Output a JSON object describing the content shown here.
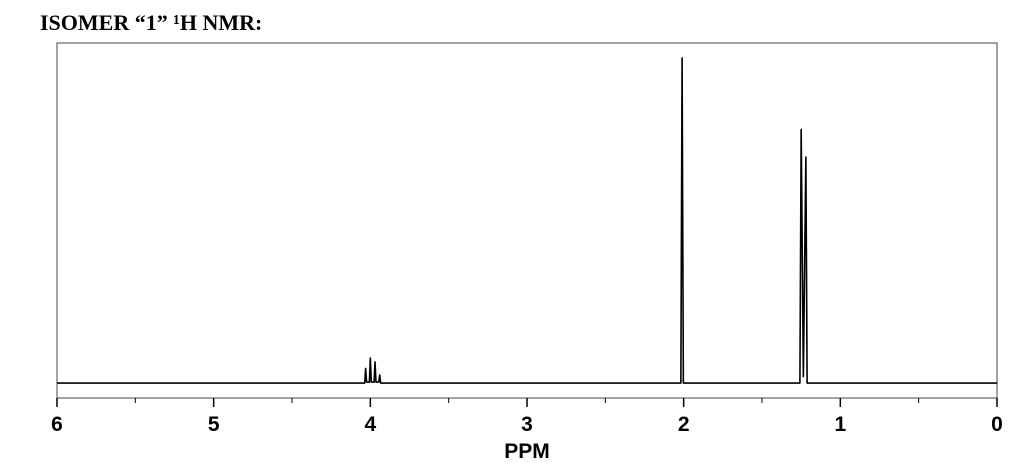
{
  "chart_data": {
    "type": "line",
    "title": "ISOMER “1” ¹H NMR:",
    "x_label": "PPM",
    "x": [
      6,
      4.036,
      4.03,
      4.024,
      4.006,
      4.0,
      3.994,
      3.976,
      3.97,
      3.964,
      3.946,
      3.94,
      3.934,
      2.018,
      2.01,
      2.002,
      1.258,
      1.25,
      1.236,
      1.22,
      1.212,
      0
    ],
    "values": [
      0,
      0,
      4.5,
      0.3,
      0.3,
      7.7,
      0.3,
      0.3,
      6.5,
      0.3,
      0.3,
      2.5,
      0,
      0,
      100,
      0,
      0,
      78,
      2,
      69.5,
      0,
      0
    ],
    "color": "#000000",
    "xlim": [
      6,
      0
    ],
    "xticks": [
      6,
      5,
      4,
      3,
      2,
      1,
      0
    ],
    "xminorticks": [
      5.5,
      4.5,
      3.5,
      2.5,
      1.5,
      0.5
    ],
    "ylim": [
      -4.6,
      104.6
    ]
  }
}
